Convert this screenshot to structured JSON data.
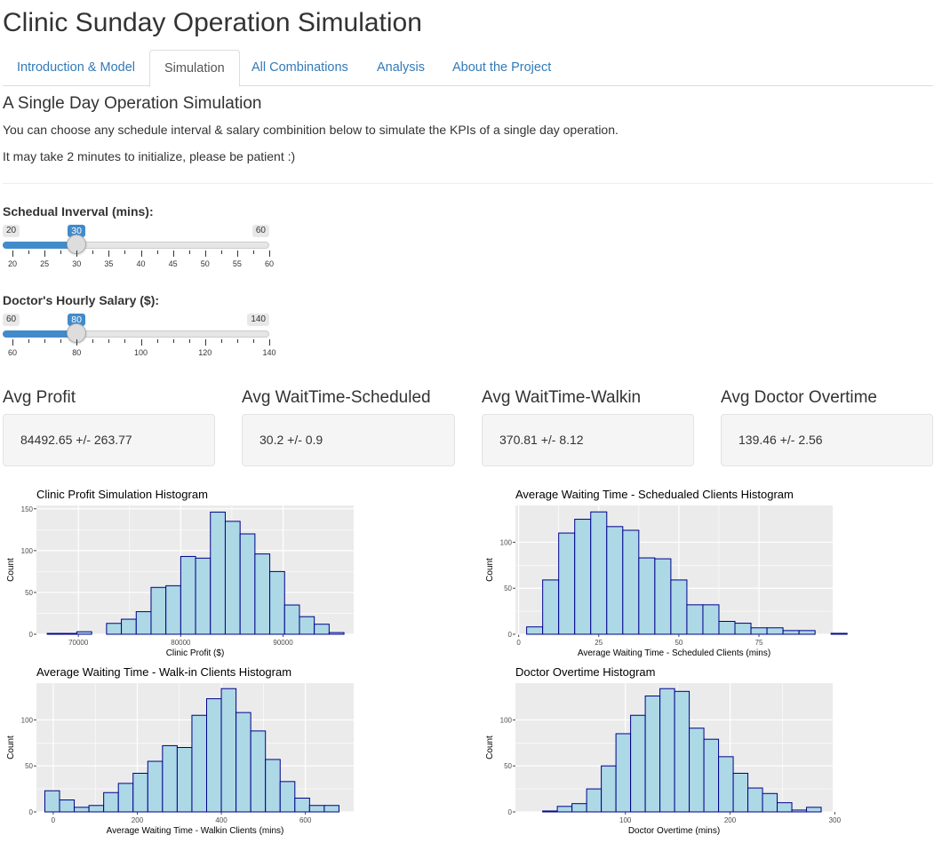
{
  "app": {
    "title": "Clinic Sunday Operation Simulation"
  },
  "tabs": [
    {
      "label": "Introduction & Model",
      "active": false
    },
    {
      "label": "Simulation",
      "active": true
    },
    {
      "label": "All Combinations",
      "active": false
    },
    {
      "label": "Analysis",
      "active": false
    },
    {
      "label": "About the Project",
      "active": false
    }
  ],
  "section": {
    "title": "A Single Day Operation Simulation",
    "line1": "You can choose any schedule interval & salary combinition below to simulate the KPIs of a single day operation.",
    "line2": "It may take 2 minutes to initialize, please be patient :)"
  },
  "sliders": {
    "interval": {
      "label": "Schedual Inverval (mins):",
      "min": "20",
      "max": "60",
      "value": "30",
      "value_num": 30,
      "min_num": 20,
      "max_num": 60,
      "ticks": [
        "20",
        "25",
        "30",
        "35",
        "40",
        "45",
        "50",
        "55",
        "60"
      ]
    },
    "salary": {
      "label": "Doctor's Hourly Salary ($):",
      "min": "60",
      "max": "140",
      "value": "80",
      "value_num": 80,
      "min_num": 60,
      "max_num": 140,
      "ticks": [
        "60",
        "80",
        "100",
        "120",
        "140"
      ]
    }
  },
  "kpis": [
    {
      "title": "Avg Profit",
      "value": "84492.65 +/- 263.77"
    },
    {
      "title": "Avg WaitTime-Scheduled",
      "value": "30.2 +/- 0.9"
    },
    {
      "title": "Avg WaitTime-Walkin",
      "value": "370.81 +/- 8.12"
    },
    {
      "title": "Avg Doctor Overtime",
      "value": "139.46 +/- 2.56"
    }
  ],
  "colors": {
    "accent": "#428bca",
    "link": "#337ab7",
    "bar_fill": "#add8e6",
    "bar_stroke": "#00008b",
    "panel_bg": "#ebebeb"
  },
  "chart_data": [
    {
      "type": "bar",
      "title": "Clinic Profit Simulation Histogram",
      "xlabel": "Clinic Profit ($)",
      "ylabel": "Count",
      "bin_start": 66950,
      "bin_width": 1450,
      "values": [
        1,
        1,
        3,
        0,
        13,
        18,
        27,
        56,
        58,
        93,
        91,
        146,
        135,
        120,
        96,
        75,
        35,
        21,
        12,
        2
      ],
      "xlim": [
        65900,
        96900
      ],
      "ylim": [
        0,
        154
      ],
      "xticks": [
        70000,
        80000,
        90000
      ],
      "xtick_labels": [
        "70000",
        "80000",
        "90000"
      ],
      "yticks": [
        0,
        50,
        100,
        150
      ],
      "ytick_labels": [
        "0",
        "50",
        "100",
        "150"
      ],
      "grid": true
    },
    {
      "type": "bar",
      "title": "Average Waiting Time - Schedualed Clients Histogram",
      "xlabel": "Average Waiting Time - Scheduled Clients (mins)",
      "ylabel": "Count",
      "bin_start": 2.5,
      "bin_width": 5,
      "values": [
        8,
        59,
        110,
        125,
        133,
        117,
        113,
        83,
        82,
        59,
        32,
        32,
        14,
        12,
        7,
        7,
        4,
        4,
        0,
        1
      ],
      "xlim": [
        -1,
        98
      ],
      "ylim": [
        0,
        140
      ],
      "xticks": [
        0,
        25,
        50,
        75
      ],
      "xtick_labels": [
        "0",
        "25",
        "50",
        "75"
      ],
      "yticks": [
        0,
        50,
        100
      ],
      "ytick_labels": [
        "0",
        "50",
        "100"
      ],
      "grid": true
    },
    {
      "type": "bar",
      "title": "Average Waiting Time - Walk-in Clients Histogram",
      "xlabel": "Average Waiting Time - Walkin Clients (mins)",
      "ylabel": "Count",
      "bin_start": -20,
      "bin_width": 35,
      "values": [
        23,
        13,
        5,
        7,
        21,
        31,
        42,
        55,
        72,
        70,
        105,
        123,
        134,
        108,
        88,
        57,
        33,
        15,
        7,
        7
      ],
      "xlim": [
        -40,
        715
      ],
      "ylim": [
        0,
        140
      ],
      "xticks": [
        0,
        200,
        400,
        600
      ],
      "xtick_labels": [
        "0",
        "200",
        "400",
        "600"
      ],
      "yticks": [
        0,
        50,
        100
      ],
      "ytick_labels": [
        "0",
        "50",
        "100"
      ],
      "grid": true
    },
    {
      "type": "bar",
      "title": "Doctor Overtime Histogram",
      "xlabel": "Doctor Overtime (mins)",
      "ylabel": "Count",
      "bin_start": 7,
      "bin_width": 14,
      "values": [
        0,
        1,
        6,
        9,
        25,
        50,
        85,
        105,
        126,
        134,
        131,
        91,
        79,
        60,
        42,
        26,
        20,
        10,
        2,
        5
      ],
      "xlim": [
        -5,
        298
      ],
      "ylim": [
        0,
        140
      ],
      "xticks": [
        100,
        200,
        300
      ],
      "xtick_labels": [
        "100",
        "200",
        "300"
      ],
      "yticks": [
        0,
        50,
        100
      ],
      "ytick_labels": [
        "0",
        "50",
        "100"
      ],
      "grid": true
    }
  ]
}
